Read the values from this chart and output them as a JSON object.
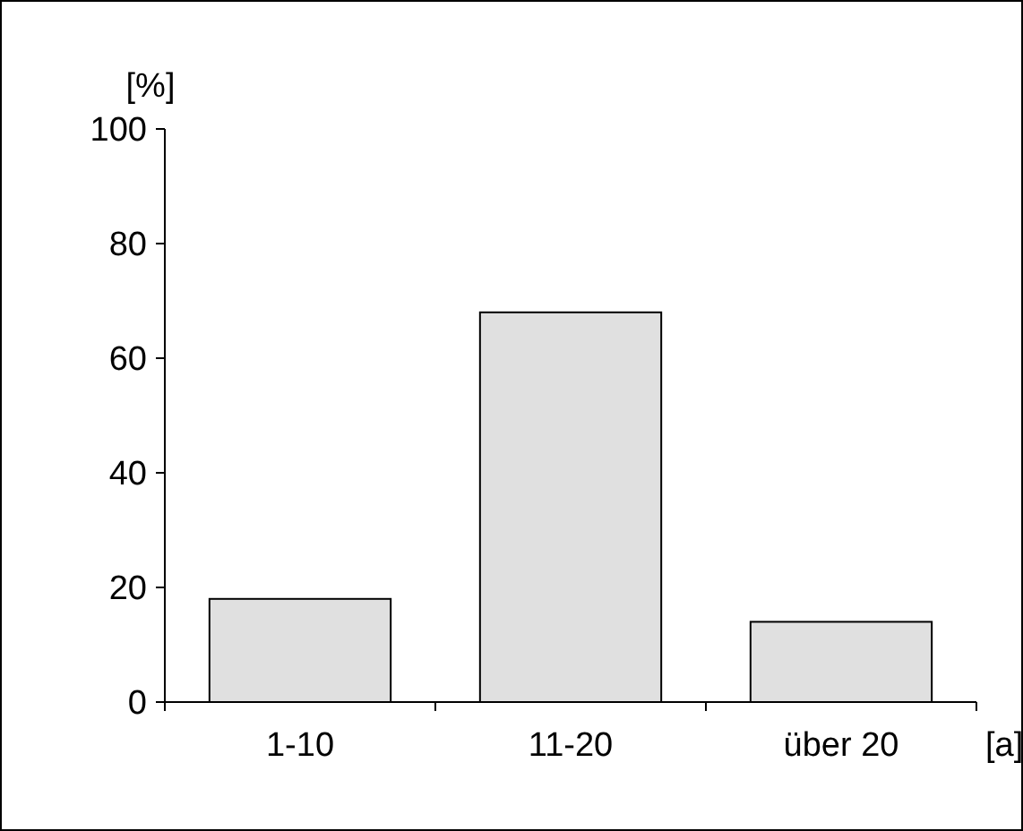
{
  "chart_data": {
    "type": "bar",
    "categories": [
      "1-10",
      "11-20",
      "über 20"
    ],
    "values": [
      18,
      68,
      14
    ],
    "color": "#e0e0e0",
    "ylim": [
      0,
      100
    ],
    "yticks": [
      0,
      20,
      40,
      60,
      80,
      100
    ],
    "ylabel": "[%]",
    "xlabel": "[a]",
    "grid": false
  }
}
